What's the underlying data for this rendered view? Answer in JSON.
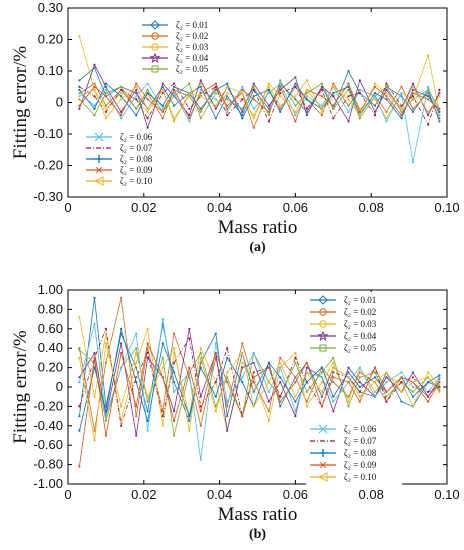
{
  "chart_data": [
    {
      "type": "line",
      "panel_label": "(a)",
      "xlabel": "Mass ratio",
      "ylabel": "Fitting error/%",
      "xlim": [
        0,
        0.1
      ],
      "ylim": [
        -0.3,
        0.3
      ],
      "xticks": [
        "0",
        "0.02",
        "0.04",
        "0.06",
        "0.08",
        "0.10"
      ],
      "yticks": [
        "-0.30",
        "-0.20",
        "-0.10",
        "0",
        "0.10",
        "0.20",
        "0.30"
      ],
      "legend_top_position": "top-left",
      "legend_bottom_position": "bottom-left",
      "x": [
        0.003,
        0.007,
        0.01,
        0.014,
        0.018,
        0.021,
        0.025,
        0.028,
        0.032,
        0.035,
        0.039,
        0.042,
        0.046,
        0.049,
        0.053,
        0.056,
        0.06,
        0.063,
        0.067,
        0.07,
        0.074,
        0.077,
        0.081,
        0.084,
        0.088,
        0.091,
        0.095,
        0.098
      ],
      "series": [
        {
          "name": "ζ₂ = 0.01",
          "values": [
            0.07,
            0.11,
            0.02,
            0.05,
            0.03,
            -0.02,
            0.05,
            -0.01,
            0.03,
            0.05,
            -0.05,
            0.02,
            -0.04,
            0.04,
            -0.02,
            0.06,
            0.01,
            -0.03,
            0.05,
            -0.02,
            0.1,
            0.03,
            -0.01,
            0.05,
            0.02,
            -0.03,
            0.04,
            -0.06
          ]
        },
        {
          "name": "ζ₂ = 0.02",
          "values": [
            0.03,
            0.06,
            -0.01,
            0.04,
            -0.02,
            0.03,
            -0.05,
            0.04,
            0.02,
            -0.03,
            0.05,
            -0.01,
            0.03,
            -0.08,
            0.04,
            -0.02,
            0.05,
            0.01,
            -0.04,
            0.06,
            -0.01,
            0.04,
            0.02,
            -0.03,
            0.05,
            -0.02,
            0.03,
            -0.05
          ]
        },
        {
          "name": "ζ₂ = 0.03",
          "values": [
            0.21,
            0.04,
            -0.02,
            0.03,
            0.01,
            -0.03,
            0.04,
            -0.05,
            0.02,
            0.06,
            -0.02,
            0.03,
            0.01,
            -0.04,
            0.05,
            -0.01,
            0.02,
            0.07,
            -0.03,
            0.02,
            0.05,
            -0.02,
            0.01,
            -0.05,
            0.03,
            0.01,
            0.15,
            -0.03
          ]
        },
        {
          "name": "ζ₂ = 0.04",
          "values": [
            -0.02,
            0.12,
            0.05,
            -0.03,
            0.04,
            -0.08,
            0.06,
            0.02,
            -0.04,
            0.07,
            -0.02,
            0.05,
            -0.03,
            0.06,
            -0.01,
            0.04,
            0.08,
            -0.04,
            0.05,
            0.02,
            -0.06,
            0.07,
            -0.03,
            0.04,
            -0.02,
            0.06,
            -0.04,
            0.03
          ]
        },
        {
          "name": "ζ₂ = 0.05",
          "values": [
            0.01,
            -0.04,
            0.03,
            0.05,
            -0.02,
            0.04,
            -0.03,
            0.02,
            0.06,
            -0.05,
            0.03,
            0.01,
            -0.02,
            0.05,
            -0.04,
            0.07,
            -0.01,
            0.03,
            0.06,
            -0.02,
            0.04,
            -0.05,
            0.02,
            0.05,
            -0.03,
            0.01,
            0.04,
            -0.02
          ]
        },
        {
          "name": "ζ₂ = 0.06",
          "values": [
            0.03,
            -0.01,
            0.04,
            -0.05,
            0.02,
            0.06,
            -0.02,
            0.03,
            -0.06,
            0.04,
            0.01,
            -0.03,
            0.05,
            -0.02,
            0.03,
            0.06,
            -0.04,
            0.02,
            -0.01,
            0.05,
            -0.03,
            0.04,
            0.02,
            -0.06,
            0.03,
            -0.19,
            0.05,
            -0.04
          ]
        },
        {
          "name": "ζ₂ = 0.07",
          "values": [
            0.05,
            0.02,
            -0.03,
            0.04,
            0.01,
            -0.05,
            0.03,
            0.06,
            -0.02,
            0.02,
            0.05,
            -0.04,
            0.01,
            0.04,
            -0.06,
            0.03,
            0.05,
            -0.02,
            0.04,
            -0.05,
            0.02,
            0.03,
            -0.04,
            0.06,
            -0.01,
            0.02,
            -0.07,
            0.04
          ]
        },
        {
          "name": "ζ₂ = 0.08",
          "values": [
            0.04,
            -0.02,
            0.06,
            0.02,
            -0.04,
            0.03,
            -0.01,
            0.05,
            0.03,
            -0.02,
            0.04,
            0.06,
            -0.05,
            0.02,
            0.04,
            -0.03,
            0.06,
            0.01,
            -0.02,
            0.03,
            0.05,
            -0.04,
            0.03,
            0.01,
            -0.05,
            0.04,
            0.02,
            -0.03
          ]
        },
        {
          "name": "ζ₂ = 0.09",
          "values": [
            -0.01,
            0.05,
            0.02,
            -0.04,
            0.06,
            0.01,
            -0.03,
            0.04,
            -0.05,
            0.03,
            0.06,
            -0.02,
            0.04,
            0.01,
            -0.03,
            0.05,
            -0.06,
            0.04,
            0.02,
            -0.01,
            0.06,
            -0.03,
            0.05,
            0.02,
            -0.04,
            0.03,
            0.01,
            -0.02
          ]
        },
        {
          "name": "ζ₂ = 0.10",
          "values": [
            0.02,
            0.04,
            -0.05,
            0.01,
            0.05,
            -0.02,
            0.04,
            -0.06,
            0.03,
            0.02,
            -0.01,
            0.05,
            0.03,
            -0.05,
            0.06,
            0.02,
            -0.03,
            0.04,
            -0.02,
            0.05,
            0.01,
            -0.04,
            0.06,
            0.03,
            -0.02,
            0.05,
            -0.03,
            0.02
          ]
        }
      ]
    },
    {
      "type": "line",
      "panel_label": "(b)",
      "xlabel": "Mass ratio",
      "ylabel": "Fitting error/%",
      "xlim": [
        0,
        0.1
      ],
      "ylim": [
        -1.0,
        1.0
      ],
      "xticks": [
        "0",
        "0.02",
        "0.04",
        "0.06",
        "0.08",
        "0.10"
      ],
      "yticks": [
        "-1.00",
        "-0.80",
        "-0.60",
        "-0.40",
        "-0.20",
        "0",
        "0.20",
        "0.40",
        "0.60",
        "0.80",
        "1.00"
      ],
      "legend_top_position": "top-right",
      "legend_bottom_position": "bottom-right",
      "x": [
        0.003,
        0.007,
        0.01,
        0.014,
        0.018,
        0.021,
        0.025,
        0.028,
        0.032,
        0.035,
        0.039,
        0.042,
        0.046,
        0.049,
        0.053,
        0.056,
        0.06,
        0.063,
        0.067,
        0.07,
        0.074,
        0.077,
        0.081,
        0.084,
        0.088,
        0.091,
        0.095,
        0.098
      ],
      "series": [
        {
          "name": "ζ₂ = 0.01",
          "values": [
            -0.3,
            0.92,
            -0.2,
            0.55,
            0.2,
            -0.25,
            0.65,
            0.05,
            -0.35,
            0.25,
            0.55,
            -0.3,
            0.35,
            -0.05,
            0.25,
            -0.2,
            0.1,
            0.25,
            -0.1,
            0.2,
            0.1,
            -0.05,
            -0.1,
            0.15,
            -0.15,
            -0.2,
            0.05,
            0.12
          ]
        },
        {
          "name": "ζ₂ = 0.02",
          "values": [
            0.4,
            -0.45,
            0.25,
            0.92,
            -0.3,
            0.4,
            -0.25,
            0.55,
            0.1,
            -0.4,
            0.3,
            -0.2,
            0.45,
            0.05,
            -0.25,
            0.3,
            0.1,
            -0.15,
            0.2,
            0.05,
            -0.1,
            0.15,
            0.05,
            -0.15,
            0.1,
            0.05,
            -0.1,
            0.08
          ]
        },
        {
          "name": "ζ₂ = 0.03",
          "values": [
            0.72,
            -0.1,
            0.55,
            -0.35,
            0.25,
            0.6,
            -0.4,
            0.35,
            -0.3,
            0.4,
            0.05,
            -0.45,
            0.25,
            0.1,
            -0.35,
            0.2,
            0.35,
            -0.2,
            0.05,
            0.25,
            -0.15,
            0.2,
            -0.05,
            0.1,
            0.05,
            -0.2,
            0.15,
            0.02
          ]
        },
        {
          "name": "ζ₂ = 0.04",
          "values": [
            0.1,
            0.35,
            -0.3,
            0.45,
            -0.5,
            0.3,
            0.1,
            -0.25,
            0.6,
            -0.1,
            0.35,
            -0.45,
            0.2,
            0.25,
            -0.15,
            0.05,
            -0.3,
            0.2,
            0.1,
            -0.25,
            0.2,
            0.05,
            -0.1,
            0.1,
            -0.05,
            0.15,
            -0.1,
            0.05
          ]
        },
        {
          "name": "ζ₂ = 0.05",
          "values": [
            0.38,
            0.25,
            -0.35,
            0.2,
            0.4,
            -0.15,
            0.3,
            -0.5,
            0.15,
            0.35,
            -0.2,
            0.1,
            -0.3,
            0.35,
            0.05,
            -0.1,
            0.25,
            -0.05,
            0.15,
            0.3,
            -0.2,
            0.1,
            0.15,
            -0.1,
            0.05,
            -0.05,
            0.1,
            -0.03
          ]
        },
        {
          "name": "ζ₂ = 0.06",
          "values": [
            0.05,
            0.65,
            -0.3,
            0.2,
            0.55,
            -0.45,
            0.7,
            -0.05,
            0.15,
            -0.75,
            0.45,
            -0.15,
            0.1,
            0.35,
            -0.05,
            0.2,
            -0.25,
            0.15,
            0.1,
            -0.15,
            0.05,
            0.2,
            -0.1,
            0.05,
            0.15,
            0.0,
            -0.05,
            0.1
          ]
        },
        {
          "name": "ζ₂ = 0.07",
          "values": [
            -0.2,
            0.3,
            0.6,
            -0.4,
            0.1,
            0.35,
            -0.3,
            0.25,
            0.5,
            -0.2,
            0.05,
            0.4,
            -0.3,
            0.15,
            0.2,
            -0.1,
            0.3,
            0.05,
            -0.2,
            0.15,
            0.1,
            -0.05,
            0.2,
            -0.15,
            0.05,
            0.1,
            -0.05,
            0.0
          ]
        },
        {
          "name": "ζ₂ = 0.08",
          "values": [
            -0.45,
            0.2,
            -0.25,
            0.6,
            0.05,
            -0.35,
            0.45,
            0.15,
            -0.3,
            0.2,
            -0.1,
            0.3,
            0.05,
            -0.2,
            0.25,
            0.1,
            -0.15,
            0.05,
            0.2,
            -0.1,
            0.15,
            0.0,
            0.1,
            -0.05,
            0.1,
            -0.1,
            0.05,
            0.0
          ]
        },
        {
          "name": "ζ₂ = 0.09",
          "values": [
            -0.82,
            0.3,
            -0.5,
            0.35,
            -0.2,
            0.45,
            0.1,
            -0.35,
            0.2,
            -0.25,
            0.35,
            0.05,
            -0.3,
            0.1,
            0.2,
            -0.15,
            0.05,
            0.25,
            -0.2,
            0.1,
            0.05,
            -0.15,
            0.2,
            -0.05,
            0.1,
            0.05,
            -0.15,
            0.05
          ]
        },
        {
          "name": "ζ₂ = 0.10",
          "values": [
            0.3,
            -0.55,
            0.45,
            -0.2,
            0.35,
            -0.1,
            0.2,
            0.4,
            -0.45,
            0.3,
            -0.25,
            0.15,
            0.35,
            -0.2,
            0.05,
            0.25,
            -0.1,
            0.15,
            -0.05,
            0.2,
            0.1,
            -0.1,
            0.05,
            0.15,
            -0.05,
            0.05,
            0.1,
            -0.05
          ]
        }
      ]
    }
  ],
  "colors": [
    "#1f77b4",
    "#d2691e",
    "#e8b820",
    "#7e2f8e",
    "#77ac30",
    "#4dbeee",
    "#a2142f",
    "#0072bd",
    "#d95319",
    "#edb120"
  ],
  "markers": [
    "diamond",
    "circle",
    "circle-open",
    "star",
    "square",
    "x",
    "dashdot",
    "plus",
    "asterisk",
    "triangle-left"
  ]
}
